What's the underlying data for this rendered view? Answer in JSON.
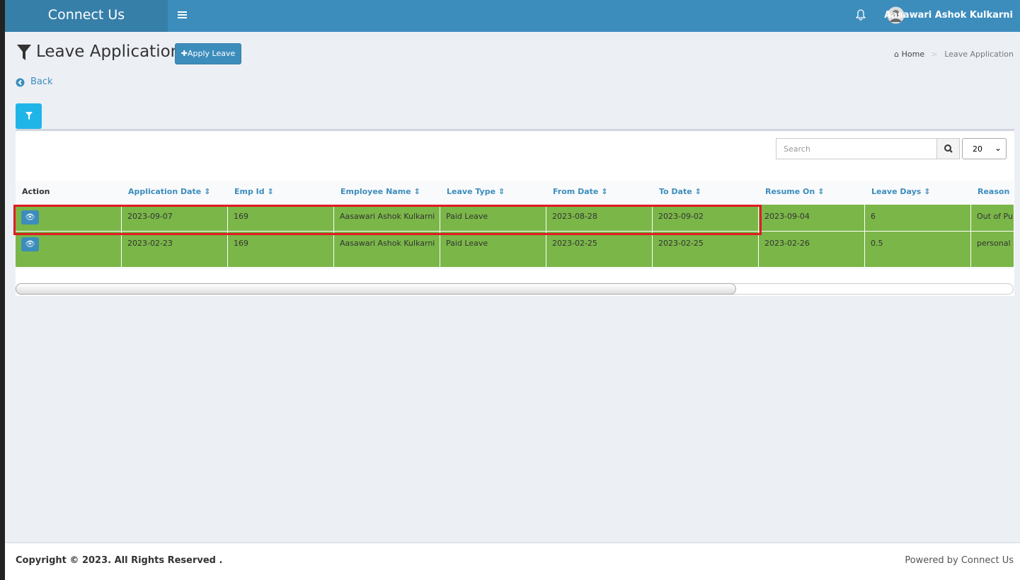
{
  "header": {
    "brand": "Connect Us",
    "user": "Aasawari Ashok Kulkarni"
  },
  "page": {
    "title": "Leave Application",
    "apply_button": "Apply Leave",
    "breadcrumb": [
      "Home",
      "Leave Application"
    ],
    "back": "Back"
  },
  "toolbar": {
    "search_placeholder": "Search",
    "page_size": "20"
  },
  "table": {
    "columns": [
      "Action",
      "Application Date",
      "Emp Id",
      "Employee Name",
      "Leave Type",
      "From Date",
      "To Date",
      "Resume On",
      "Leave Days",
      "Reason"
    ],
    "rows": [
      [
        "2023-09-07",
        "169",
        "Aasawari Ashok Kulkarni",
        "Paid Leave",
        "2023-08-28",
        "2023-09-02",
        "2023-09-04",
        "6",
        "Out of Pur"
      ],
      [
        "2023-02-23",
        "169",
        "Aasawari Ashok Kulkarni",
        "Paid Leave",
        "2023-02-25",
        "2023-02-25",
        "2023-02-26",
        "0.5",
        "personal"
      ]
    ]
  },
  "footer": {
    "copyright": "Copyright © 2023. All Rights Reserved .",
    "powered": "Powered by Connect Us"
  }
}
